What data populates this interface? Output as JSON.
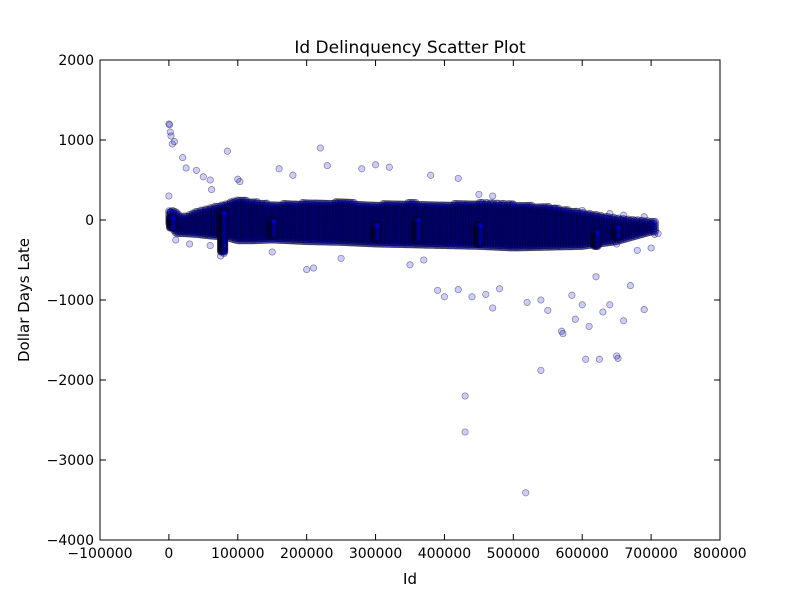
{
  "chart_data": {
    "type": "scatter",
    "title": "Id Delinquency Scatter Plot",
    "xlabel": "Id",
    "ylabel": "Dollar Days Late",
    "xlim": [
      -100000,
      800000
    ],
    "ylim": [
      -4000,
      2000
    ],
    "xticks": [
      -100000,
      0,
      100000,
      200000,
      300000,
      400000,
      500000,
      600000,
      700000,
      800000
    ],
    "xtick_labels": [
      "−100000",
      "0",
      "100000",
      "200000",
      "300000",
      "400000",
      "500000",
      "600000",
      "700000",
      "800000"
    ],
    "yticks": [
      -4000,
      -3000,
      -2000,
      -1000,
      0,
      1000,
      2000
    ],
    "ytick_labels": [
      "−4000",
      "−3000",
      "−2000",
      "−1000",
      "0",
      "1000",
      "2000"
    ],
    "grid": false,
    "series": [
      {
        "color": "#0000ff",
        "alpha": 0.2,
        "points": [
          [
            0,
            1200
          ],
          [
            1000,
            1190
          ],
          [
            2000,
            1100
          ],
          [
            3000,
            1050
          ],
          [
            5000,
            950
          ],
          [
            8000,
            980
          ],
          [
            20000,
            780
          ],
          [
            25000,
            650
          ],
          [
            40000,
            620
          ],
          [
            50000,
            540
          ],
          [
            60000,
            500
          ],
          [
            62000,
            380
          ],
          [
            85000,
            860
          ],
          [
            100000,
            510
          ],
          [
            103000,
            480
          ],
          [
            160000,
            640
          ],
          [
            180000,
            560
          ],
          [
            220000,
            900
          ],
          [
            230000,
            680
          ],
          [
            280000,
            640
          ],
          [
            300000,
            690
          ],
          [
            320000,
            660
          ],
          [
            380000,
            560
          ],
          [
            420000,
            520
          ],
          [
            0,
            300
          ],
          [
            2000,
            100
          ],
          [
            5000,
            -100
          ],
          [
            10000,
            -250
          ],
          [
            30000,
            -300
          ],
          [
            60000,
            -320
          ],
          [
            75000,
            -450
          ],
          [
            80000,
            -420
          ],
          [
            150000,
            -400
          ],
          [
            200000,
            -620
          ],
          [
            210000,
            -600
          ],
          [
            250000,
            -480
          ],
          [
            350000,
            -560
          ],
          [
            370000,
            -500
          ],
          [
            390000,
            -880
          ],
          [
            400000,
            -960
          ],
          [
            420000,
            -870
          ],
          [
            440000,
            -960
          ],
          [
            460000,
            -930
          ],
          [
            470000,
            -1100
          ],
          [
            480000,
            -860
          ],
          [
            520000,
            -1030
          ],
          [
            540000,
            -1000
          ],
          [
            550000,
            -1130
          ],
          [
            570000,
            -1390
          ],
          [
            572000,
            -1420
          ],
          [
            585000,
            -940
          ],
          [
            590000,
            -1240
          ],
          [
            600000,
            -1060
          ],
          [
            605000,
            -1740
          ],
          [
            610000,
            -1330
          ],
          [
            620000,
            -710
          ],
          [
            625000,
            -1740
          ],
          [
            630000,
            -1150
          ],
          [
            640000,
            -1060
          ],
          [
            650000,
            -1700
          ],
          [
            652000,
            -1730
          ],
          [
            660000,
            -1260
          ],
          [
            670000,
            -820
          ],
          [
            690000,
            -1120
          ],
          [
            540000,
            -1880
          ],
          [
            430000,
            -2200
          ],
          [
            430000,
            -2650
          ],
          [
            518000,
            -3410
          ],
          [
            450000,
            320
          ],
          [
            470000,
            300
          ],
          [
            500000,
            200
          ],
          [
            560000,
            150
          ],
          [
            600000,
            120
          ],
          [
            640000,
            80
          ],
          [
            660000,
            60
          ],
          [
            690000,
            40
          ],
          [
            700000,
            -60
          ],
          [
            705000,
            -180
          ],
          [
            710000,
            -170
          ],
          [
            700000,
            -350
          ],
          [
            680000,
            -380
          ],
          [
            650000,
            -300
          ]
        ]
      }
    ],
    "band": [
      [
        0,
        -40,
        130
      ],
      [
        10000,
        -170,
        120
      ],
      [
        20000,
        -170,
        40
      ],
      [
        40000,
        -180,
        110
      ],
      [
        60000,
        -200,
        160
      ],
      [
        80000,
        -210,
        200
      ],
      [
        100000,
        -260,
        260
      ],
      [
        120000,
        -260,
        240
      ],
      [
        150000,
        -250,
        200
      ],
      [
        200000,
        -270,
        220
      ],
      [
        250000,
        -280,
        230
      ],
      [
        300000,
        -300,
        200
      ],
      [
        350000,
        -310,
        220
      ],
      [
        400000,
        -320,
        200
      ],
      [
        450000,
        -330,
        220
      ],
      [
        500000,
        -350,
        200
      ],
      [
        550000,
        -340,
        170
      ],
      [
        600000,
        -330,
        100
      ],
      [
        650000,
        -270,
        30
      ],
      [
        700000,
        -150,
        -10
      ]
    ],
    "dense_columns": [
      [
        4000,
        -100,
        40
      ],
      [
        78000,
        -400,
        100
      ],
      [
        150000,
        -200,
        0
      ],
      [
        300000,
        -240,
        -50
      ],
      [
        360000,
        -260,
        10
      ],
      [
        450000,
        -300,
        -50
      ],
      [
        620000,
        -330,
        -150
      ],
      [
        650000,
        -220,
        -80
      ]
    ]
  }
}
